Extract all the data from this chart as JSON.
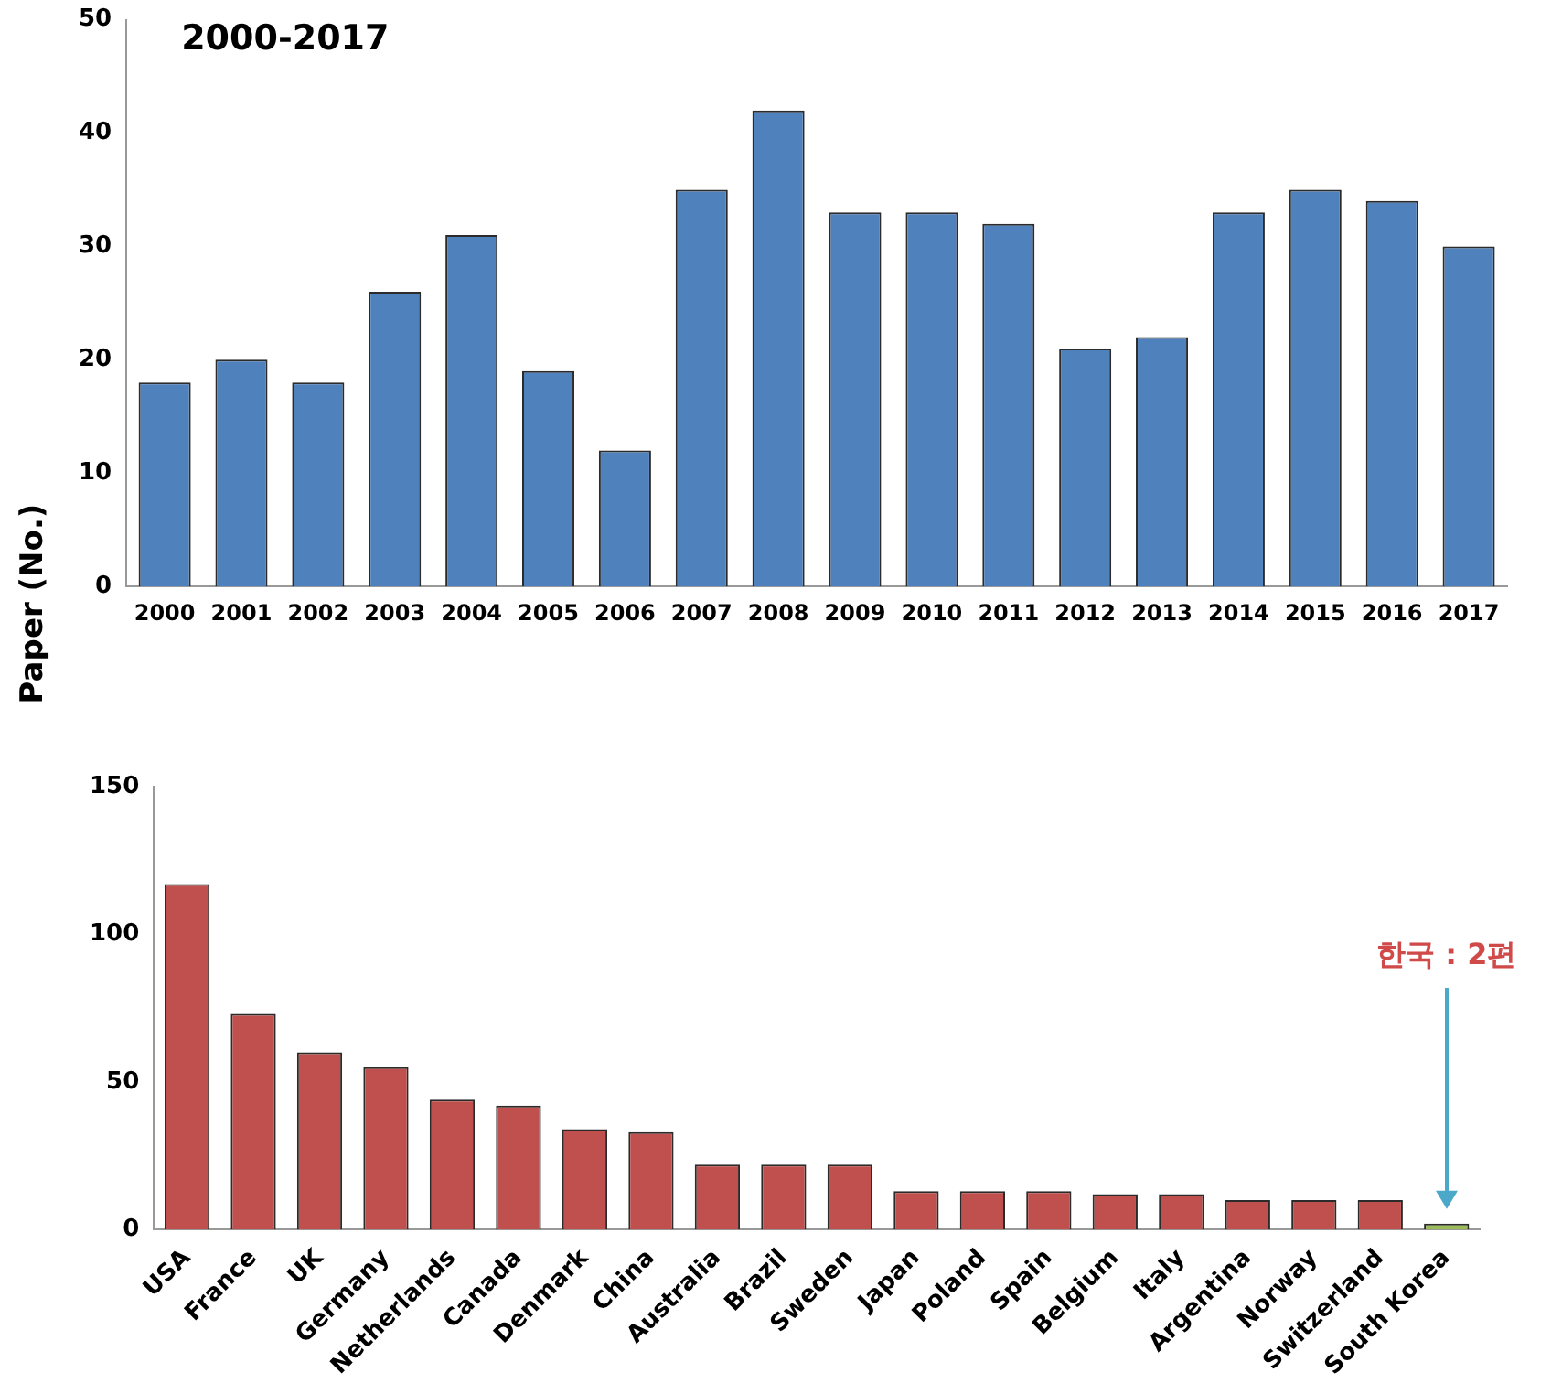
{
  "chart_data": [
    {
      "type": "bar",
      "title": "2000-2017",
      "ylabel": "Paper (No.)",
      "categories": [
        "2000",
        "2001",
        "2002",
        "2003",
        "2004",
        "2005",
        "2006",
        "2007",
        "2008",
        "2009",
        "2010",
        "2011",
        "2012",
        "2013",
        "2014",
        "2015",
        "2016",
        "2017"
      ],
      "values": [
        18,
        20,
        18,
        26,
        31,
        19,
        12,
        35,
        42,
        33,
        33,
        32,
        21,
        22,
        33,
        35,
        34,
        30
      ],
      "color": "#4f81bd",
      "ylim": [
        0,
        50
      ],
      "yticks": [
        0,
        10,
        20,
        30,
        40,
        50
      ],
      "grid": false,
      "legend": false
    },
    {
      "type": "bar",
      "categories": [
        "USA",
        "France",
        "UK",
        "Germany",
        "Netherlands",
        "Canada",
        "Denmark",
        "China",
        "Australia",
        "Brazil",
        "Sweden",
        "Japan",
        "Poland",
        "Spain",
        "Belgium",
        "Italy",
        "Argentina",
        "Norway",
        "Switzerland",
        "South Korea"
      ],
      "values": [
        117,
        73,
        60,
        55,
        44,
        42,
        34,
        33,
        22,
        22,
        22,
        13,
        13,
        13,
        12,
        12,
        10,
        10,
        10,
        2
      ],
      "colors": [
        "#c0504d",
        "#c0504d",
        "#c0504d",
        "#c0504d",
        "#c0504d",
        "#c0504d",
        "#c0504d",
        "#c0504d",
        "#c0504d",
        "#c0504d",
        "#c0504d",
        "#c0504d",
        "#c0504d",
        "#c0504d",
        "#c0504d",
        "#c0504d",
        "#c0504d",
        "#c0504d",
        "#c0504d",
        "#9bbb59"
      ],
      "ylim": [
        0,
        150
      ],
      "yticks": [
        0,
        50,
        100,
        150
      ],
      "grid": false,
      "legend": false,
      "annotations": [
        "한국 : 2편"
      ]
    }
  ]
}
